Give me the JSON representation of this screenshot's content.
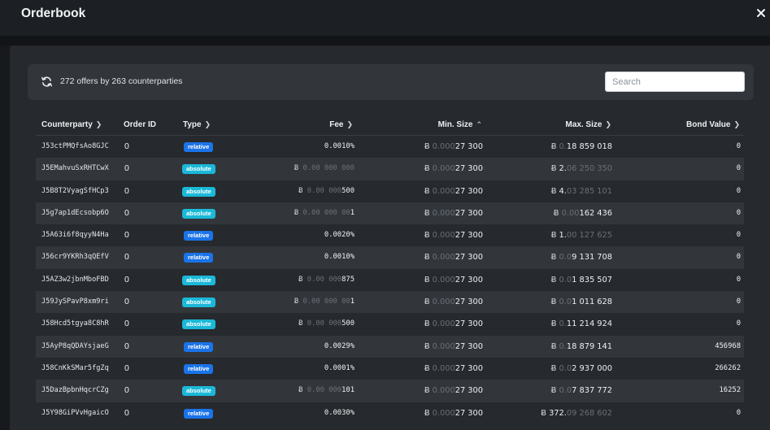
{
  "header": {
    "title": "Orderbook"
  },
  "toolbar": {
    "offers_summary": "272 offers by 263 counterparties",
    "search_placeholder": "Search"
  },
  "columns": {
    "counterparty": "Counterparty",
    "order_id": "Order ID",
    "type": "Type",
    "fee": "Fee",
    "min_size": "Min. Size",
    "max_size": "Max. Size",
    "bond_value": "Bond Value"
  },
  "rows": [
    {
      "counterparty": "J53ctPMQfsAo8GJC",
      "order_id": "0",
      "type": "relative",
      "fee": "0.0010%",
      "fee_btc": false,
      "fee_dim": "",
      "fee_main": "",
      "min_dim": "0.000",
      "min_main": "27 300",
      "max_dim": "0.",
      "max_main": "18 859 018",
      "max_suffix": "",
      "bond": "0"
    },
    {
      "counterparty": "J5EMahvuSxRHTCwX",
      "order_id": "0",
      "type": "absolute",
      "fee": "",
      "fee_btc": true,
      "fee_dim": "0.00 000 000",
      "fee_main": "",
      "min_dim": "0.000",
      "min_main": "27 300",
      "max_dim": "",
      "max_main": "2.",
      "max_suffix": "06 250 350",
      "bond": "0"
    },
    {
      "counterparty": "J5B8T2VyagSfHCp3",
      "order_id": "0",
      "type": "absolute",
      "fee": "",
      "fee_btc": true,
      "fee_dim": "0.00 000",
      "fee_main": "500",
      "min_dim": "0.000",
      "min_main": "27 300",
      "max_dim": "",
      "max_main": "4.",
      "max_suffix": "03 285 101",
      "bond": "0"
    },
    {
      "counterparty": "J5g7ap1dEcsobp6O",
      "order_id": "0",
      "type": "absolute",
      "fee": "",
      "fee_btc": true,
      "fee_dim": "0.00 000 00",
      "fee_main": "1",
      "min_dim": "0.000",
      "min_main": "27 300",
      "max_dim": "0.00",
      "max_main": "162 436",
      "max_suffix": "",
      "bond": "0"
    },
    {
      "counterparty": "J5A63i6f8qyyN4Ha",
      "order_id": "0",
      "type": "relative",
      "fee": "0.0020%",
      "fee_btc": false,
      "fee_dim": "",
      "fee_main": "",
      "min_dim": "0.000",
      "min_main": "27 300",
      "max_dim": "",
      "max_main": "1.",
      "max_suffix": "00 127 625",
      "bond": "0"
    },
    {
      "counterparty": "J56cr9YKRh3qQEfV",
      "order_id": "0",
      "type": "relative",
      "fee": "0.0010%",
      "fee_btc": false,
      "fee_dim": "",
      "fee_main": "",
      "min_dim": "0.000",
      "min_main": "27 300",
      "max_dim": "0.0",
      "max_main": "9 131 708",
      "max_suffix": "",
      "bond": "0"
    },
    {
      "counterparty": "J5AZ3w2jbnMboFBD",
      "order_id": "0",
      "type": "absolute",
      "fee": "",
      "fee_btc": true,
      "fee_dim": "0.00 000",
      "fee_main": "875",
      "min_dim": "0.000",
      "min_main": "27 300",
      "max_dim": "0.0",
      "max_main": "1 835 507",
      "max_suffix": "",
      "bond": "0"
    },
    {
      "counterparty": "J59JySPavP8xm9ri",
      "order_id": "0",
      "type": "absolute",
      "fee": "",
      "fee_btc": true,
      "fee_dim": "0.00 000 00",
      "fee_main": "1",
      "min_dim": "0.000",
      "min_main": "27 300",
      "max_dim": "0.0",
      "max_main": "1 011 628",
      "max_suffix": "",
      "bond": "0"
    },
    {
      "counterparty": "J58Hcd5tgya8C8hR",
      "order_id": "0",
      "type": "absolute",
      "fee": "",
      "fee_btc": true,
      "fee_dim": "0.00 000",
      "fee_main": "500",
      "min_dim": "0.000",
      "min_main": "27 300",
      "max_dim": "0.",
      "max_main": "11 214 924",
      "max_suffix": "",
      "bond": "0"
    },
    {
      "counterparty": "J5AyP8qQDAYsjaeG",
      "order_id": "0",
      "type": "relative",
      "fee": "0.0029%",
      "fee_btc": false,
      "fee_dim": "",
      "fee_main": "",
      "min_dim": "0.000",
      "min_main": "27 300",
      "max_dim": "0.",
      "max_main": "18 879 141",
      "max_suffix": "",
      "bond": "456968"
    },
    {
      "counterparty": "J58CnKkSMar5fgZq",
      "order_id": "0",
      "type": "relative",
      "fee": "0.0001%",
      "fee_btc": false,
      "fee_dim": "",
      "fee_main": "",
      "min_dim": "0.000",
      "min_main": "27 300",
      "max_dim": "0.0",
      "max_main": "2 937 000",
      "max_suffix": "",
      "bond": "266262"
    },
    {
      "counterparty": "J5DazBpbnHqcrCZg",
      "order_id": "0",
      "type": "absolute",
      "fee": "",
      "fee_btc": true,
      "fee_dim": "0.00 000",
      "fee_main": "101",
      "min_dim": "0.000",
      "min_main": "27 300",
      "max_dim": "0.0",
      "max_main": "7 837 772",
      "max_suffix": "",
      "bond": "16252"
    },
    {
      "counterparty": "J5Y98GiPVvHgaicO",
      "order_id": "0",
      "type": "relative",
      "fee": "0.0030%",
      "fee_btc": false,
      "fee_dim": "",
      "fee_main": "",
      "min_dim": "0.000",
      "min_main": "27 300",
      "max_dim": "",
      "max_main": "372.",
      "max_suffix": "09 268 602",
      "bond": "0"
    }
  ],
  "btc_symbol": "Ƀ",
  "colors": {
    "relative_badge": "#1a73e8",
    "absolute_badge": "#1bb8d8",
    "panel": "#26292d",
    "row_alt": "#32363b"
  }
}
